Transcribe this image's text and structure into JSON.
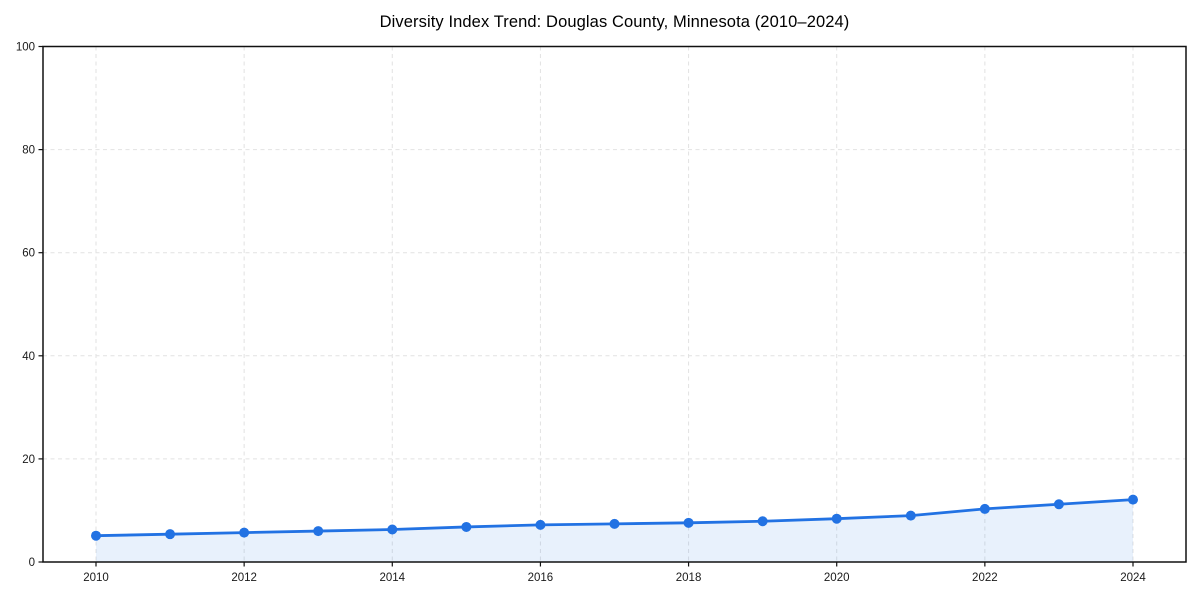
{
  "chart_data": {
    "type": "line",
    "title": "Diversity Index Trend: Douglas County, Minnesota (2010–2024)",
    "x": [
      2010,
      2011,
      2012,
      2013,
      2014,
      2015,
      2016,
      2017,
      2018,
      2019,
      2020,
      2021,
      2022,
      2023,
      2024
    ],
    "series": [
      {
        "name": "Diversity Index",
        "values": [
          5.1,
          5.4,
          5.7,
          6.0,
          6.3,
          6.8,
          7.2,
          7.4,
          7.6,
          7.9,
          8.4,
          9.0,
          10.3,
          11.2,
          12.1
        ],
        "color": "#2272e3",
        "fill_opacity": 0.1,
        "marker": "circle"
      }
    ],
    "xlabel": "",
    "ylabel": "",
    "xlim": [
      2010,
      2024
    ],
    "ylim": [
      0,
      100
    ],
    "xticks": [
      2010,
      2012,
      2014,
      2016,
      2018,
      2020,
      2022,
      2024
    ],
    "yticks": [
      0,
      20,
      40,
      60,
      80,
      100
    ],
    "grid": true,
    "grid_style": "dashed",
    "grid_color": "#e2e2e2",
    "axis_color": "#111111",
    "tick_label_color": "#1a1a1a",
    "legend": "none",
    "background": "#ffffff"
  }
}
